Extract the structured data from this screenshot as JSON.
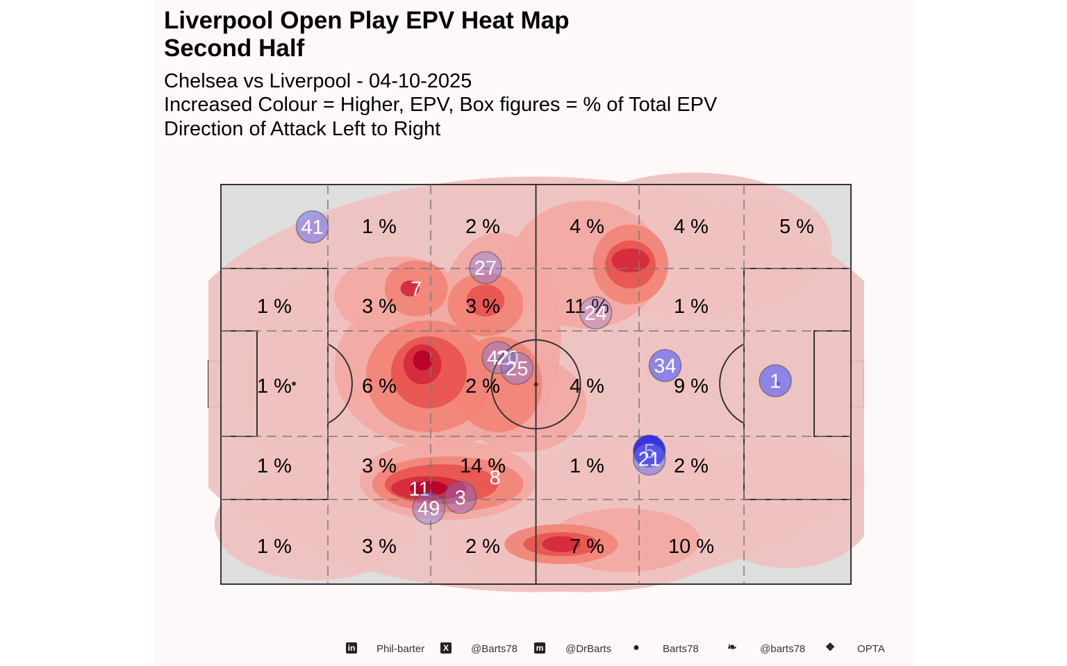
{
  "title_line1": "Liverpool  Open Play EPV Heat Map",
  "title_line2": "Second Half",
  "subtitle_line1": "Chelsea vs Liverpool - 04-10-2025",
  "subtitle_line2": "Increased Colour = Higher, EPV, Box figures = % of Total EPV",
  "subtitle_line3": "Direction of Attack Left to Right",
  "colors": {
    "panel_bg": "#fff8f8",
    "pitch_fill": "#dedede",
    "pitch_lines": "#333333",
    "heat_low": "#eec2c0",
    "heat_high": "#b8002b",
    "player_marker": "#6f6ff0"
  },
  "footer": [
    {
      "icon": "linkedin-icon",
      "label": "Phil-barter"
    },
    {
      "icon": "x-twitter-icon",
      "label": "@Barts78"
    },
    {
      "icon": "mastodon-icon",
      "label": "@DrBarts"
    },
    {
      "icon": "github-icon",
      "label": "Barts78"
    },
    {
      "icon": "bluesky-icon",
      "label": "@barts78"
    },
    {
      "icon": "dropbox-icon",
      "label": "OPTA"
    }
  ],
  "chart_data": {
    "type": "heatmap",
    "direction_of_attack": "left-to-right",
    "zone_grid": {
      "columns": 6,
      "rows": 5,
      "zones": [
        {
          "row": 0,
          "col": 0,
          "label": ""
        },
        {
          "row": 0,
          "col": 1,
          "label": "1 %"
        },
        {
          "row": 0,
          "col": 2,
          "label": "2 %"
        },
        {
          "row": 0,
          "col": 3,
          "label": "4 %"
        },
        {
          "row": 0,
          "col": 4,
          "label": "4 %"
        },
        {
          "row": 0,
          "col": 5,
          "label": "5 %"
        },
        {
          "row": 1,
          "col": 0,
          "label": "1 %"
        },
        {
          "row": 1,
          "col": 1,
          "label": "3 %"
        },
        {
          "row": 1,
          "col": 2,
          "label": "3 %"
        },
        {
          "row": 1,
          "col": 3,
          "label": "11 %"
        },
        {
          "row": 1,
          "col": 4,
          "label": "1 %"
        },
        {
          "row": 1,
          "col": 5,
          "label": ""
        },
        {
          "row": 2,
          "col": 0,
          "label": "1 %"
        },
        {
          "row": 2,
          "col": 1,
          "label": "6 %"
        },
        {
          "row": 2,
          "col": 2,
          "label": "2 %"
        },
        {
          "row": 2,
          "col": 3,
          "label": "4 %"
        },
        {
          "row": 2,
          "col": 4,
          "label": "9 %"
        },
        {
          "row": 2,
          "col": 5,
          "label": ""
        },
        {
          "row": 3,
          "col": 0,
          "label": "1 %"
        },
        {
          "row": 3,
          "col": 1,
          "label": "3 %"
        },
        {
          "row": 3,
          "col": 2,
          "label": "14 %"
        },
        {
          "row": 3,
          "col": 3,
          "label": "1 %"
        },
        {
          "row": 3,
          "col": 4,
          "label": "2 %"
        },
        {
          "row": 3,
          "col": 5,
          "label": ""
        },
        {
          "row": 4,
          "col": 0,
          "label": "1 %"
        },
        {
          "row": 4,
          "col": 1,
          "label": "3 %"
        },
        {
          "row": 4,
          "col": 2,
          "label": "2 %"
        },
        {
          "row": 4,
          "col": 3,
          "label": "7 %"
        },
        {
          "row": 4,
          "col": 4,
          "label": "10 %"
        },
        {
          "row": 4,
          "col": 5,
          "label": ""
        }
      ]
    },
    "heat_hotspots": [
      {
        "x": 33,
        "y": 52,
        "weight": 0.9
      },
      {
        "x": 33,
        "y": 25,
        "weight": 1.0
      },
      {
        "x": 40,
        "y": 28,
        "weight": 0.8
      },
      {
        "x": 30,
        "y": 70,
        "weight": 0.7
      },
      {
        "x": 44,
        "y": 68,
        "weight": 0.7
      },
      {
        "x": 65,
        "y": 80,
        "weight": 0.8
      },
      {
        "x": 54,
        "y": 10,
        "weight": 0.6
      },
      {
        "x": 45,
        "y": 50,
        "weight": 0.5
      }
    ],
    "players": [
      {
        "number": "41",
        "x": 14.5,
        "y": 89.4,
        "alpha": 0.55
      },
      {
        "number": "27",
        "x": 42.0,
        "y": 79.2,
        "alpha": 0.35
      },
      {
        "number": "7",
        "x": 31.0,
        "y": 74.0,
        "alpha": 0.0
      },
      {
        "number": "24",
        "x": 59.5,
        "y": 67.9,
        "alpha": 0.25
      },
      {
        "number": "42",
        "x": 44.0,
        "y": 56.7,
        "alpha": 0.35
      },
      {
        "number": "20",
        "x": 45.5,
        "y": 56.7,
        "alpha": 0.0
      },
      {
        "number": "25",
        "x": 47.0,
        "y": 54.0,
        "alpha": 0.35
      },
      {
        "number": "34",
        "x": 70.5,
        "y": 54.7,
        "alpha": 0.75
      },
      {
        "number": "1",
        "x": 88.0,
        "y": 50.9,
        "alpha": 0.75
      },
      {
        "number": "5",
        "x": 68.0,
        "y": 33.3,
        "alpha": 0.9
      },
      {
        "number": "21",
        "x": 68.0,
        "y": 31.3,
        "alpha": 0.55
      },
      {
        "number": "8",
        "x": 43.5,
        "y": 26.7,
        "alpha": 0.0
      },
      {
        "number": "11",
        "x": 31.5,
        "y": 23.9,
        "alpha": 0.0
      },
      {
        "number": "3",
        "x": 38.0,
        "y": 21.7,
        "alpha": 0.35
      },
      {
        "number": "49",
        "x": 33.0,
        "y": 19.0,
        "alpha": 0.35
      }
    ]
  }
}
